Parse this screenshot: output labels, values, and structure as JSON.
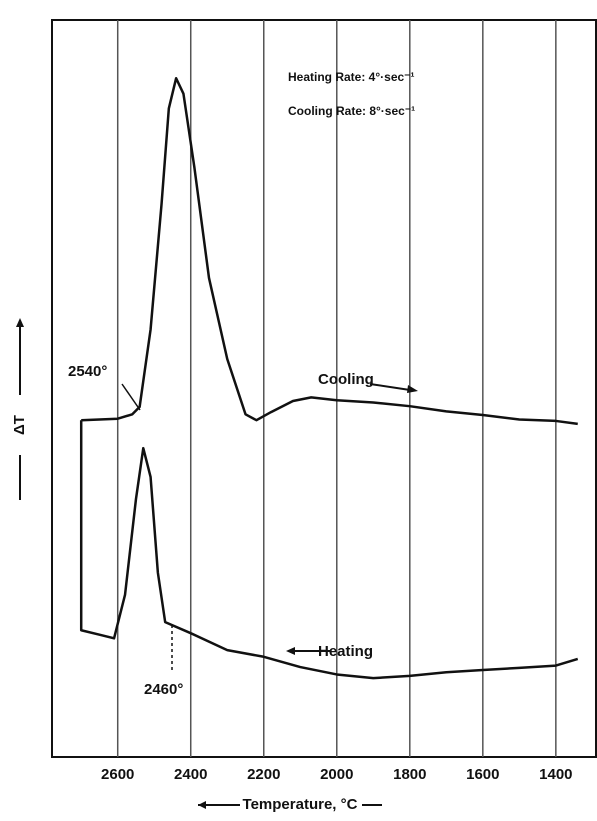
{
  "chart_data": {
    "type": "line",
    "x_label": "Temperature, °C",
    "y_label": "ΔT",
    "annotations": [
      "Heating Rate: 4°·sec⁻¹",
      "Cooling Rate: 8°·sec⁻¹",
      "2540°",
      "2460°",
      "Cooling",
      "Heating"
    ],
    "xlim": [
      2780,
      1290
    ],
    "xticks": [
      2600,
      2400,
      2200,
      2000,
      1800,
      1600,
      1400
    ],
    "ylim": [
      0,
      100
    ],
    "grid": true,
    "series": [
      {
        "name": "Cooling",
        "color": "#111111",
        "x": [
          2700,
          2600,
          2560,
          2540,
          2510,
          2480,
          2460,
          2440,
          2420,
          2390,
          2350,
          2300,
          2250,
          2220,
          2180,
          2120,
          2070,
          2000,
          1900,
          1800,
          1700,
          1600,
          1500,
          1400,
          1340
        ],
        "values": [
          45.7,
          45.9,
          46.5,
          47.5,
          58,
          75,
          88,
          92.1,
          90,
          80,
          65,
          54,
          46.5,
          45.7,
          46.8,
          48.3,
          48.8,
          48.4,
          48.1,
          47.6,
          46.9,
          46.4,
          45.8,
          45.6,
          45.2
        ]
      },
      {
        "name": "Heating",
        "color": "#111111",
        "x": [
          2700,
          2700,
          2650,
          2610,
          2580,
          2550,
          2530,
          2510,
          2490,
          2470,
          2400,
          2300,
          2200,
          2100,
          2000,
          1900,
          1800,
          1700,
          1600,
          1500,
          1400,
          1340
        ],
        "values": [
          45.7,
          17.2,
          16.6,
          16.1,
          22,
          35,
          41.9,
          38,
          25,
          18.3,
          16.8,
          14.5,
          13.6,
          12.2,
          11.2,
          10.7,
          11.0,
          11.5,
          11.8,
          12.1,
          12.4,
          13.3
        ]
      }
    ]
  }
}
